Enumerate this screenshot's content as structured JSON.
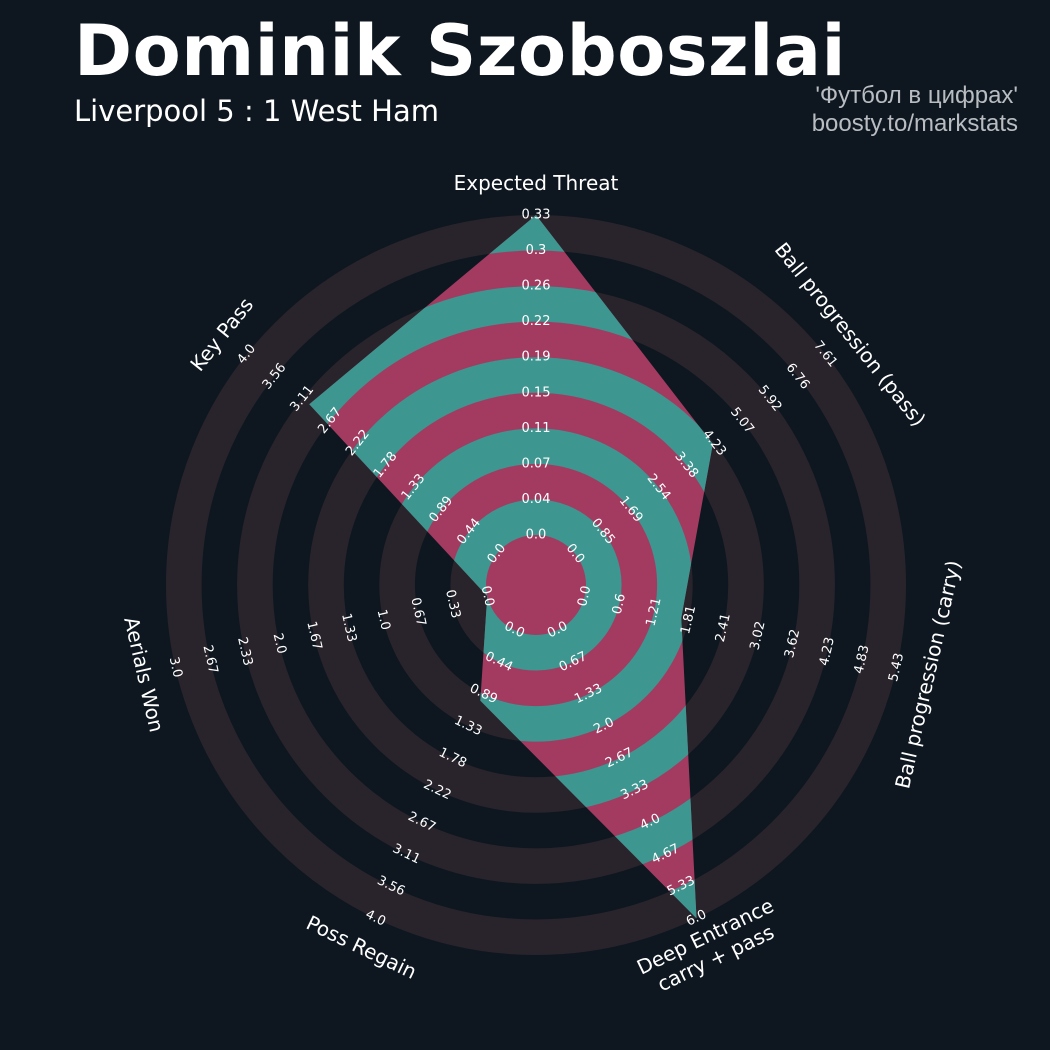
{
  "header": {
    "title": "Dominik Szoboszlai",
    "subtitle": "Liverpool 5 : 1 West Ham",
    "credit_line1": "'Футбол в цифрах'",
    "credit_line2": "boosty.to/markstats"
  },
  "chart_data": {
    "type": "radar",
    "params": [
      {
        "label": [
          "Expected Threat"
        ],
        "value": 0.33,
        "ticks": [
          "0.0",
          "0.04",
          "0.07",
          "0.11",
          "0.15",
          "0.19",
          "0.22",
          "0.26",
          "0.3",
          "0.33"
        ],
        "range": [
          0,
          0.33
        ]
      },
      {
        "label": [
          "Ball progression (pass)"
        ],
        "value": 4.19,
        "ticks": [
          "0.0",
          "0.85",
          "1.69",
          "2.54",
          "3.38",
          "4.23",
          "5.07",
          "5.92",
          "6.76",
          "7.61"
        ],
        "range": [
          0,
          7.61
        ]
      },
      {
        "label": [
          "Ball progression (carry)"
        ],
        "value": 1.68,
        "ticks": [
          "0.0",
          "0.6",
          "1.21",
          "1.81",
          "2.41",
          "3.02",
          "3.62",
          "4.23",
          "4.83",
          "5.43"
        ],
        "range": [
          0,
          5.43
        ]
      },
      {
        "label": [
          "Deep Entrance",
          "carry + pass"
        ],
        "value": 6.0,
        "ticks": [
          "0.0",
          "0.67",
          "1.33",
          "2.0",
          "2.67",
          "3.33",
          "4.0",
          "4.67",
          "5.33",
          "6.0"
        ],
        "range": [
          0,
          6.0
        ]
      },
      {
        "label": [
          "Poss Regain"
        ],
        "value": 0.98,
        "ticks": [
          "0.0",
          "0.44",
          "0.89",
          "1.33",
          "1.78",
          "2.22",
          "2.67",
          "3.11",
          "3.56",
          "4.0"
        ],
        "range": [
          0,
          4.0
        ]
      },
      {
        "label": [
          "Aerials Won"
        ],
        "value": 0.0,
        "ticks": [
          "0.0",
          "0.33",
          "0.67",
          "1.0",
          "1.33",
          "1.67",
          "2.0",
          "2.33",
          "2.67",
          "3.0"
        ],
        "range": [
          0,
          3.0
        ]
      },
      {
        "label": [
          "Key Pass"
        ],
        "value": 3.0,
        "ticks": [
          "0.0",
          "0.44",
          "0.89",
          "1.33",
          "1.78",
          "2.22",
          "2.67",
          "3.11",
          "3.56",
          "4.0"
        ],
        "range": [
          0,
          4.0
        ]
      }
    ],
    "colors": {
      "background": "#0e1720",
      "ring": "#29242b",
      "fill_a": "#3d9690",
      "fill_b": "#a33b61",
      "text": "#ffffff"
    }
  }
}
